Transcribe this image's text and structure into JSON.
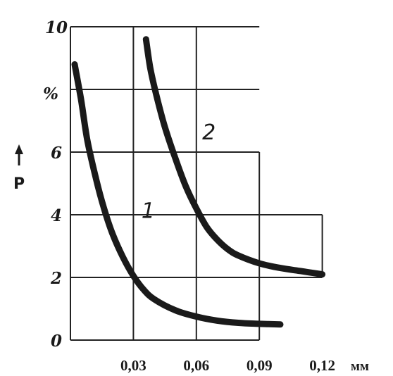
{
  "chart_data": {
    "type": "line",
    "ylabel": "P",
    "y_unit_label": "%",
    "x_unit_label": "мм",
    "ylim": [
      0,
      10
    ],
    "xlim": [
      0,
      0.12
    ],
    "y_ticks": [
      "0",
      "2",
      "4",
      "6",
      "10"
    ],
    "x_ticks": [
      "0,03",
      "0,06",
      "0,09",
      "0,12"
    ],
    "x_tick_values": [
      0.03,
      0.06,
      0.09,
      0.12
    ],
    "grid": true,
    "series": [
      {
        "name": "1",
        "x": [
          0.002,
          0.005,
          0.008,
          0.012,
          0.016,
          0.02,
          0.025,
          0.03,
          0.035,
          0.04,
          0.05,
          0.06,
          0.07,
          0.08,
          0.09,
          0.1
        ],
        "y": [
          8.8,
          7.7,
          6.4,
          5.2,
          4.2,
          3.4,
          2.65,
          2.05,
          1.6,
          1.3,
          0.95,
          0.75,
          0.62,
          0.55,
          0.52,
          0.5
        ]
      },
      {
        "name": "2",
        "x": [
          0.036,
          0.038,
          0.041,
          0.045,
          0.05,
          0.055,
          0.06,
          0.065,
          0.07,
          0.075,
          0.08,
          0.09,
          0.1,
          0.11,
          0.12
        ],
        "y": [
          9.6,
          8.7,
          7.8,
          6.8,
          5.8,
          4.9,
          4.2,
          3.6,
          3.2,
          2.9,
          2.7,
          2.45,
          2.3,
          2.2,
          2.1
        ]
      }
    ]
  }
}
